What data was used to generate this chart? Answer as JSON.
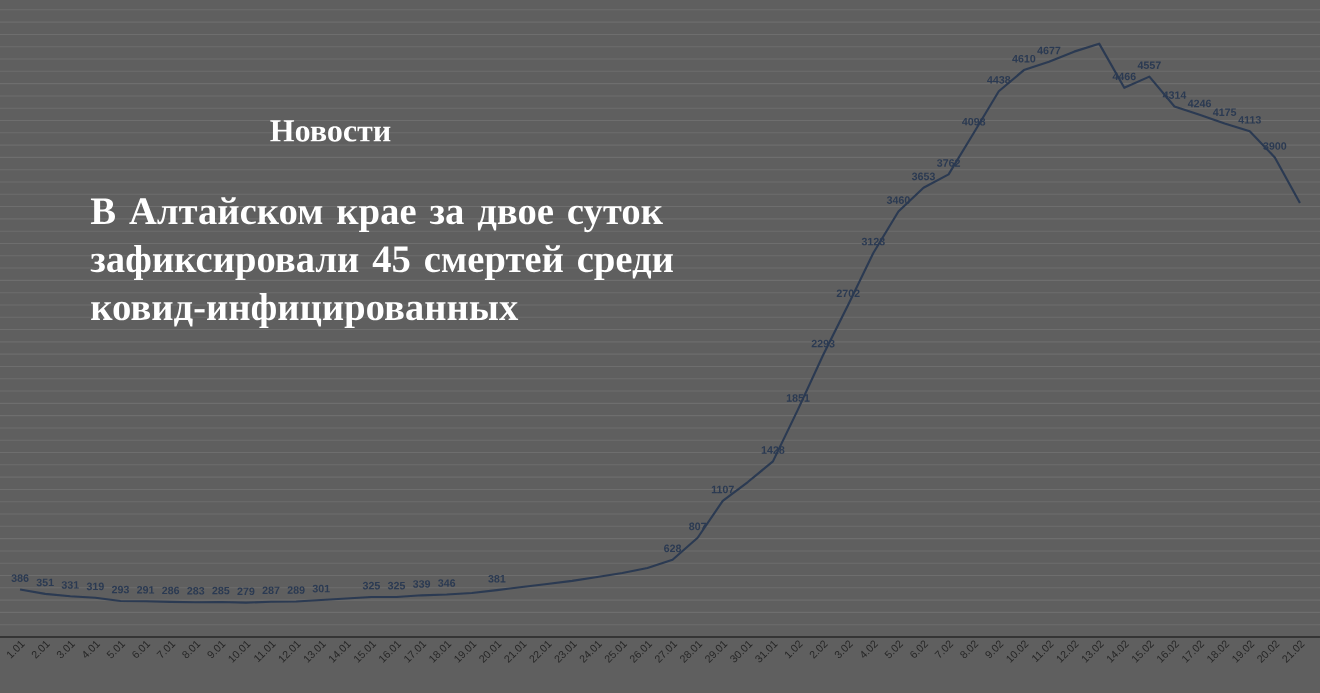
{
  "chart_data": {
    "type": "line",
    "title": "В Алтайском крае за двое суток зафиксировали 45 смертей среди ковид-инфицированных",
    "subtitle": "Новости",
    "categories": [
      "1.01",
      "2.01",
      "3.01",
      "4.01",
      "5.01",
      "6.01",
      "7.01",
      "8.01",
      "9.01",
      "10.01",
      "11.01",
      "12.01",
      "13.01",
      "14.01",
      "15.01",
      "16.01",
      "17.01",
      "18.01",
      "19.01",
      "20.01",
      "21.01",
      "22.01",
      "23.01",
      "24.01",
      "25.01",
      "26.01",
      "27.01",
      "28.01",
      "29.01",
      "30.01",
      "31.01",
      "1.02",
      "2.02",
      "3.02",
      "4.02",
      "5.02",
      "6.02",
      "7.02",
      "8.02",
      "9.02",
      "10.02",
      "11.02",
      "12.02",
      "13.02",
      "14.02",
      "15.02",
      "16.02",
      "17.02",
      "18.02",
      "19.02",
      "20.02",
      "21.02"
    ],
    "values": [
      386,
      351,
      331,
      319,
      293,
      291,
      286,
      283,
      285,
      279,
      287,
      289,
      301,
      313,
      325,
      325,
      339,
      346,
      358,
      381,
      407,
      431,
      456,
      488,
      521,
      561,
      628,
      807,
      1107,
      1260,
      1428,
      1851,
      2293,
      2702,
      3123,
      3460,
      3653,
      3762,
      4098,
      4438,
      4610,
      4677,
      4760,
      4825,
      4466,
      4557,
      4314,
      4246,
      4175,
      4113,
      3900,
      3530
    ],
    "value_labels": [
      "386",
      "351",
      "331",
      "319",
      "293",
      "291",
      "286",
      "283",
      "285",
      "279",
      "287",
      "289",
      "301",
      null,
      "325",
      "325",
      "339",
      "346",
      null,
      "381",
      null,
      null,
      null,
      null,
      null,
      null,
      "628",
      "807",
      "1107",
      null,
      "1428",
      "1851",
      "2293",
      "2702",
      "3123",
      "3460",
      "3653",
      "3762",
      "4098",
      "4438",
      "4610",
      "4677",
      null,
      null,
      "4466",
      "4557",
      "4314",
      "4246",
      "4175",
      "4113",
      "3900",
      null
    ],
    "color": "#2b3a52",
    "ylim": [
      0,
      5180
    ],
    "yticks": [
      {
        "value": 0,
        "label": null
      },
      {
        "value": 100,
        "label": null
      },
      {
        "value": 200,
        "label": null
      },
      {
        "value": 300,
        "label": null
      },
      {
        "value": 400,
        "label": null
      },
      {
        "value": 500,
        "label": null
      },
      {
        "value": 600,
        "label": null
      },
      {
        "value": 700,
        "label": null
      },
      {
        "value": 800,
        "label": null
      },
      {
        "value": 900,
        "label": null
      },
      {
        "value": 1000,
        "label": null
      },
      {
        "value": 1100,
        "label": null
      },
      {
        "value": 1200,
        "label": null
      },
      {
        "value": 1300,
        "label": null
      },
      {
        "value": 1400,
        "label": null
      },
      {
        "value": 1500,
        "label": null
      },
      {
        "value": 1600,
        "label": null
      },
      {
        "value": 1700,
        "label": null
      },
      {
        "value": 1800,
        "label": null
      },
      {
        "value": 1900,
        "label": null
      },
      {
        "value": 2000,
        "label": null
      },
      {
        "value": 2100,
        "label": null
      },
      {
        "value": 2200,
        "label": null
      },
      {
        "value": 2300,
        "label": null
      },
      {
        "value": 2400,
        "label": null
      },
      {
        "value": 2500,
        "label": null
      },
      {
        "value": 2600,
        "label": null
      },
      {
        "value": 2700,
        "label": null
      },
      {
        "value": 2800,
        "label": null
      },
      {
        "value": 2900,
        "label": null
      },
      {
        "value": 3000,
        "label": null
      },
      {
        "value": 3100,
        "label": null
      },
      {
        "value": 3200,
        "label": null
      },
      {
        "value": 3300,
        "label": null
      },
      {
        "value": 3400,
        "label": null
      },
      {
        "value": 3500,
        "label": null
      },
      {
        "value": 3600,
        "label": null
      },
      {
        "value": 3700,
        "label": null
      },
      {
        "value": 3800,
        "label": null
      },
      {
        "value": 3900,
        "label": null
      },
      {
        "value": 4000,
        "label": null
      },
      {
        "value": 4100,
        "label": null
      },
      {
        "value": 4200,
        "label": null
      },
      {
        "value": 4300,
        "label": null
      },
      {
        "value": 4400,
        "label": null
      },
      {
        "value": 4500,
        "label": null
      },
      {
        "value": 4600,
        "label": null
      },
      {
        "value": 4700,
        "label": null
      },
      {
        "value": 4800,
        "label": null
      },
      {
        "value": 4900,
        "label": null
      },
      {
        "value": 5000,
        "label": null
      },
      {
        "value": 5100,
        "label": null
      }
    ],
    "grid": "y",
    "tick_labels": "x"
  }
}
